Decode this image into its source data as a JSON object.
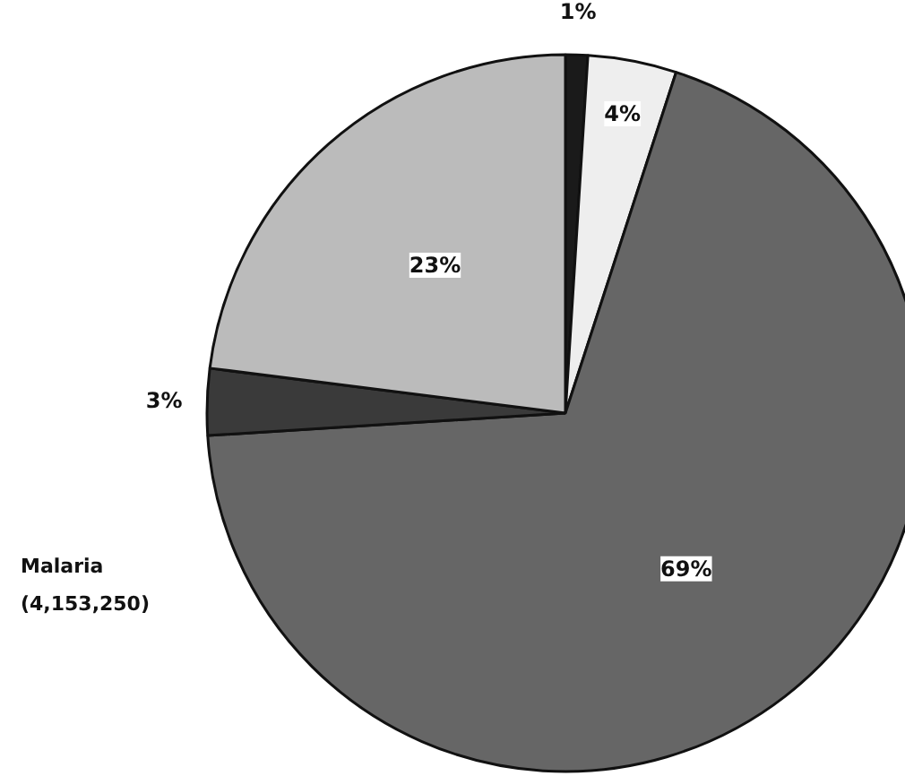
{
  "chart_data": {
    "type": "pie",
    "categories": [
      null,
      null,
      null,
      null,
      null
    ],
    "values": [
      1,
      4,
      69,
      3,
      23
    ],
    "colors": [
      "#1a1a1a",
      "#eeeeee",
      "#666666",
      "#3a3a3a",
      "#bbbbbb"
    ],
    "value_labels": [
      "1%",
      "4%",
      "69%",
      "3%",
      "23%"
    ],
    "annotations": [
      "Malaria\n(4,153,250)"
    ]
  }
}
